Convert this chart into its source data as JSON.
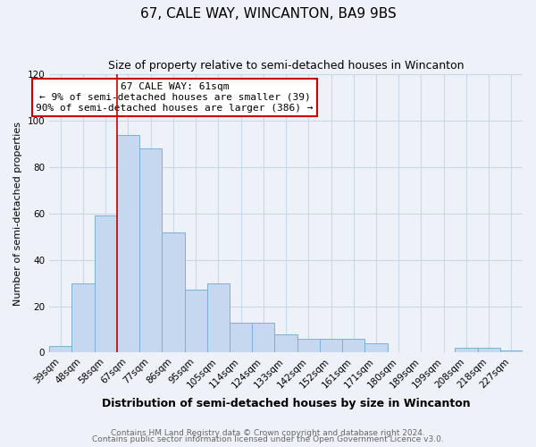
{
  "title": "67, CALE WAY, WINCANTON, BA9 9BS",
  "subtitle": "Size of property relative to semi-detached houses in Wincanton",
  "xlabel": "Distribution of semi-detached houses by size in Wincanton",
  "ylabel": "Number of semi-detached properties",
  "categories": [
    "39sqm",
    "48sqm",
    "58sqm",
    "67sqm",
    "77sqm",
    "86sqm",
    "95sqm",
    "105sqm",
    "114sqm",
    "124sqm",
    "133sqm",
    "142sqm",
    "152sqm",
    "161sqm",
    "171sqm",
    "180sqm",
    "189sqm",
    "199sqm",
    "208sqm",
    "218sqm",
    "227sqm"
  ],
  "values": [
    3,
    30,
    59,
    94,
    88,
    52,
    27,
    30,
    13,
    13,
    8,
    6,
    6,
    6,
    4,
    0,
    0,
    0,
    2,
    2,
    1
  ],
  "bar_color": "#c5d8f0",
  "bar_edge_color": "#7ab0d8",
  "ylim": [
    0,
    120
  ],
  "yticks": [
    0,
    20,
    40,
    60,
    80,
    100,
    120
  ],
  "property_label": "67 CALE WAY: 61sqm",
  "pct_smaller": 9,
  "pct_larger": 90,
  "n_smaller": 39,
  "n_larger": 386,
  "vline_x": 2.5,
  "annotation_box_color": "#ffffff",
  "annotation_box_edge_color": "#cc0000",
  "vline_color": "#cc0000",
  "grid_color": "#c8d8e8",
  "background_color": "#eef2f8",
  "footer_line1": "Contains HM Land Registry data © Crown copyright and database right 2024.",
  "footer_line2": "Contains public sector information licensed under the Open Government Licence v3.0.",
  "title_fontsize": 11,
  "subtitle_fontsize": 9,
  "xlabel_fontsize": 9,
  "ylabel_fontsize": 8,
  "tick_fontsize": 7.5,
  "footer_fontsize": 6.5,
  "ann_fontsize": 8
}
